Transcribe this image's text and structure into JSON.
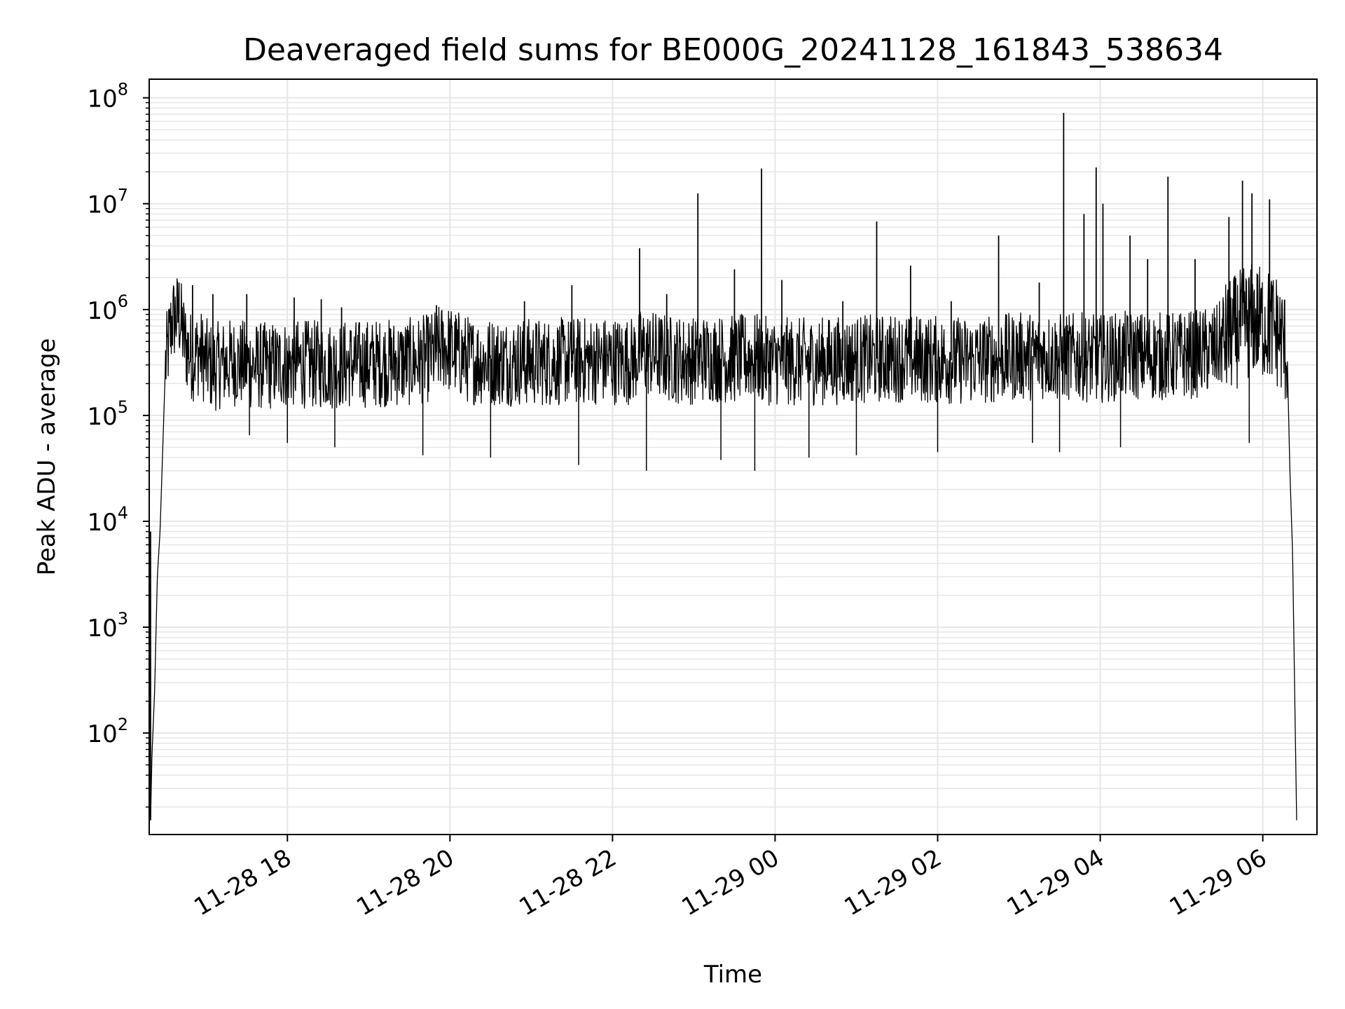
{
  "chart_data": {
    "type": "line",
    "title": "Deaveraged field sums for BE000G_20241128_161843_538634",
    "xlabel": "Time",
    "ylabel": "Peak ADU - average",
    "yscale": "log",
    "ylim": [
      11,
      150000000
    ],
    "xlim": [
      "2024-11-28 16:18",
      "2024-11-29 06:40"
    ],
    "grid": true,
    "line_color": "#000000",
    "x_ticks": [
      {
        "value": "2024-11-28 18:00",
        "label": "11-28 18"
      },
      {
        "value": "2024-11-28 20:00",
        "label": "11-28 20"
      },
      {
        "value": "2024-11-28 22:00",
        "label": "11-28 22"
      },
      {
        "value": "2024-11-29 00:00",
        "label": "11-29 00"
      },
      {
        "value": "2024-11-29 02:00",
        "label": "11-29 02"
      },
      {
        "value": "2024-11-29 04:00",
        "label": "11-29 04"
      },
      {
        "value": "2024-11-29 06:00",
        "label": "11-29 06"
      }
    ],
    "y_ticks": [
      {
        "value": 100,
        "base": "10",
        "exp": "2"
      },
      {
        "value": 1000,
        "base": "10",
        "exp": "3"
      },
      {
        "value": 10000,
        "base": "10",
        "exp": "4"
      },
      {
        "value": 100000,
        "base": "10",
        "exp": "5"
      },
      {
        "value": 1000000,
        "base": "10",
        "exp": "6"
      },
      {
        "value": 10000000,
        "base": "10",
        "exp": "7"
      },
      {
        "value": 100000000,
        "base": "10",
        "exp": "8"
      }
    ],
    "series": [
      {
        "x": [
          "2024-11-28 16:19",
          "2024-11-28 16:20",
          "2024-11-28 16:22",
          "2024-11-28 16:24",
          "2024-11-28 16:26",
          "2024-11-28 16:30",
          "2024-11-28 16:35",
          "2024-11-28 16:40",
          "2024-11-28 16:45",
          "2024-11-28 16:50",
          "2024-11-28 16:55",
          "2024-11-28 17:00",
          "2024-11-28 17:05",
          "2024-11-28 17:10",
          "2024-11-28 17:20",
          "2024-11-28 17:30",
          "2024-11-28 17:45",
          "2024-11-28 18:00",
          "2024-11-28 18:30",
          "2024-11-28 19:00",
          "2024-11-28 19:30",
          "2024-11-28 19:45",
          "2024-11-28 19:55",
          "2024-11-28 20:15",
          "2024-11-28 20:45",
          "2024-11-28 21:15",
          "2024-11-28 21:45",
          "2024-11-28 22:15",
          "2024-11-28 22:21",
          "2024-11-28 22:45",
          "2024-11-28 23:00",
          "2024-11-28 23:04",
          "2024-11-28 23:30",
          "2024-11-28 23:45",
          "2024-11-28 23:50",
          "2024-11-29 00:15",
          "2024-11-29 00:45",
          "2024-11-29 01:07",
          "2024-11-29 01:30",
          "2024-11-29 01:50",
          "2024-11-29 02:15",
          "2024-11-29 02:40",
          "2024-11-29 03:00",
          "2024-11-29 03:20",
          "2024-11-29 03:33",
          "2024-11-29 03:45",
          "2024-11-29 03:57",
          "2024-11-29 04:20",
          "2024-11-29 04:50",
          "2024-11-29 05:10",
          "2024-11-29 05:25",
          "2024-11-29 05:35",
          "2024-11-29 05:45",
          "2024-11-29 05:52",
          "2024-11-29 06:00",
          "2024-11-29 06:10",
          "2024-11-29 06:18",
          "2024-11-29 06:20",
          "2024-11-29 06:22",
          "2024-11-29 06:24",
          "2024-11-29 06:25"
        ],
        "y": [
          15,
          60,
          250,
          3000,
          8000,
          300000,
          800000,
          900000,
          450000,
          350000,
          400000,
          320000,
          280000,
          300000,
          320000,
          300000,
          290000,
          310000,
          300000,
          310000,
          320000,
          350000,
          450000,
          330000,
          320000,
          320000,
          330000,
          330000,
          400000,
          340000,
          330000,
          350000,
          340000,
          360000,
          330000,
          320000,
          330000,
          340000,
          350000,
          340000,
          330000,
          340000,
          360000,
          370000,
          350000,
          360000,
          340000,
          370000,
          360000,
          380000,
          420000,
          550000,
          700000,
          800000,
          750000,
          650000,
          400000,
          30000,
          5000,
          100,
          15
        ]
      }
    ],
    "spikes": [
      {
        "x": "2024-11-28 16:19",
        "y": 8000
      },
      {
        "x": "2024-11-28 16:40",
        "y": 1800000
      },
      {
        "x": "2024-11-28 16:50",
        "y": 1700000
      },
      {
        "x": "2024-11-28 17:05",
        "y": 1400000
      },
      {
        "x": "2024-11-28 17:30",
        "y": 1400000
      },
      {
        "x": "2024-11-28 18:05",
        "y": 1300000
      },
      {
        "x": "2024-11-28 18:25",
        "y": 1250000
      },
      {
        "x": "2024-11-28 18:40",
        "y": 1050000
      },
      {
        "x": "2024-11-28 19:50",
        "y": 1100000
      },
      {
        "x": "2024-11-28 20:55",
        "y": 1200000
      },
      {
        "x": "2024-11-28 21:30",
        "y": 1700000
      },
      {
        "x": "2024-11-28 22:20",
        "y": 3800000
      },
      {
        "x": "2024-11-28 22:40",
        "y": 1400000
      },
      {
        "x": "2024-11-28 23:03",
        "y": 12500000
      },
      {
        "x": "2024-11-28 23:30",
        "y": 2400000
      },
      {
        "x": "2024-11-28 23:50",
        "y": 21500000
      },
      {
        "x": "2024-11-29 00:05",
        "y": 1900000
      },
      {
        "x": "2024-11-29 00:50",
        "y": 1200000
      },
      {
        "x": "2024-11-29 01:15",
        "y": 6800000
      },
      {
        "x": "2024-11-29 01:40",
        "y": 2600000
      },
      {
        "x": "2024-11-29 02:10",
        "y": 1200000
      },
      {
        "x": "2024-11-29 02:45",
        "y": 5000000
      },
      {
        "x": "2024-11-29 03:15",
        "y": 1800000
      },
      {
        "x": "2024-11-29 03:33",
        "y": 72000000
      },
      {
        "x": "2024-11-29 03:48",
        "y": 8000000
      },
      {
        "x": "2024-11-29 03:57",
        "y": 22000000
      },
      {
        "x": "2024-11-29 04:02",
        "y": 10000000
      },
      {
        "x": "2024-11-29 04:22",
        "y": 5000000
      },
      {
        "x": "2024-11-29 04:35",
        "y": 3000000
      },
      {
        "x": "2024-11-29 04:50",
        "y": 18000000
      },
      {
        "x": "2024-11-29 05:10",
        "y": 3000000
      },
      {
        "x": "2024-11-29 05:35",
        "y": 7500000
      },
      {
        "x": "2024-11-29 05:45",
        "y": 16500000
      },
      {
        "x": "2024-11-29 05:52",
        "y": 12500000
      },
      {
        "x": "2024-11-29 06:05",
        "y": 11000000
      }
    ],
    "dips": [
      {
        "x": "2024-11-28 17:32",
        "y": 65000
      },
      {
        "x": "2024-11-28 18:00",
        "y": 55000
      },
      {
        "x": "2024-11-28 18:35",
        "y": 50000
      },
      {
        "x": "2024-11-28 19:40",
        "y": 42000
      },
      {
        "x": "2024-11-28 20:30",
        "y": 40000
      },
      {
        "x": "2024-11-28 21:35",
        "y": 34000
      },
      {
        "x": "2024-11-28 22:25",
        "y": 30000
      },
      {
        "x": "2024-11-28 23:20",
        "y": 38000
      },
      {
        "x": "2024-11-28 23:45",
        "y": 30000
      },
      {
        "x": "2024-11-29 00:25",
        "y": 40000
      },
      {
        "x": "2024-11-29 01:00",
        "y": 42000
      },
      {
        "x": "2024-11-29 02:00",
        "y": 45000
      },
      {
        "x": "2024-11-29 03:10",
        "y": 55000
      },
      {
        "x": "2024-11-29 03:30",
        "y": 45000
      },
      {
        "x": "2024-11-29 04:15",
        "y": 50000
      },
      {
        "x": "2024-11-29 05:50",
        "y": 55000
      }
    ]
  }
}
